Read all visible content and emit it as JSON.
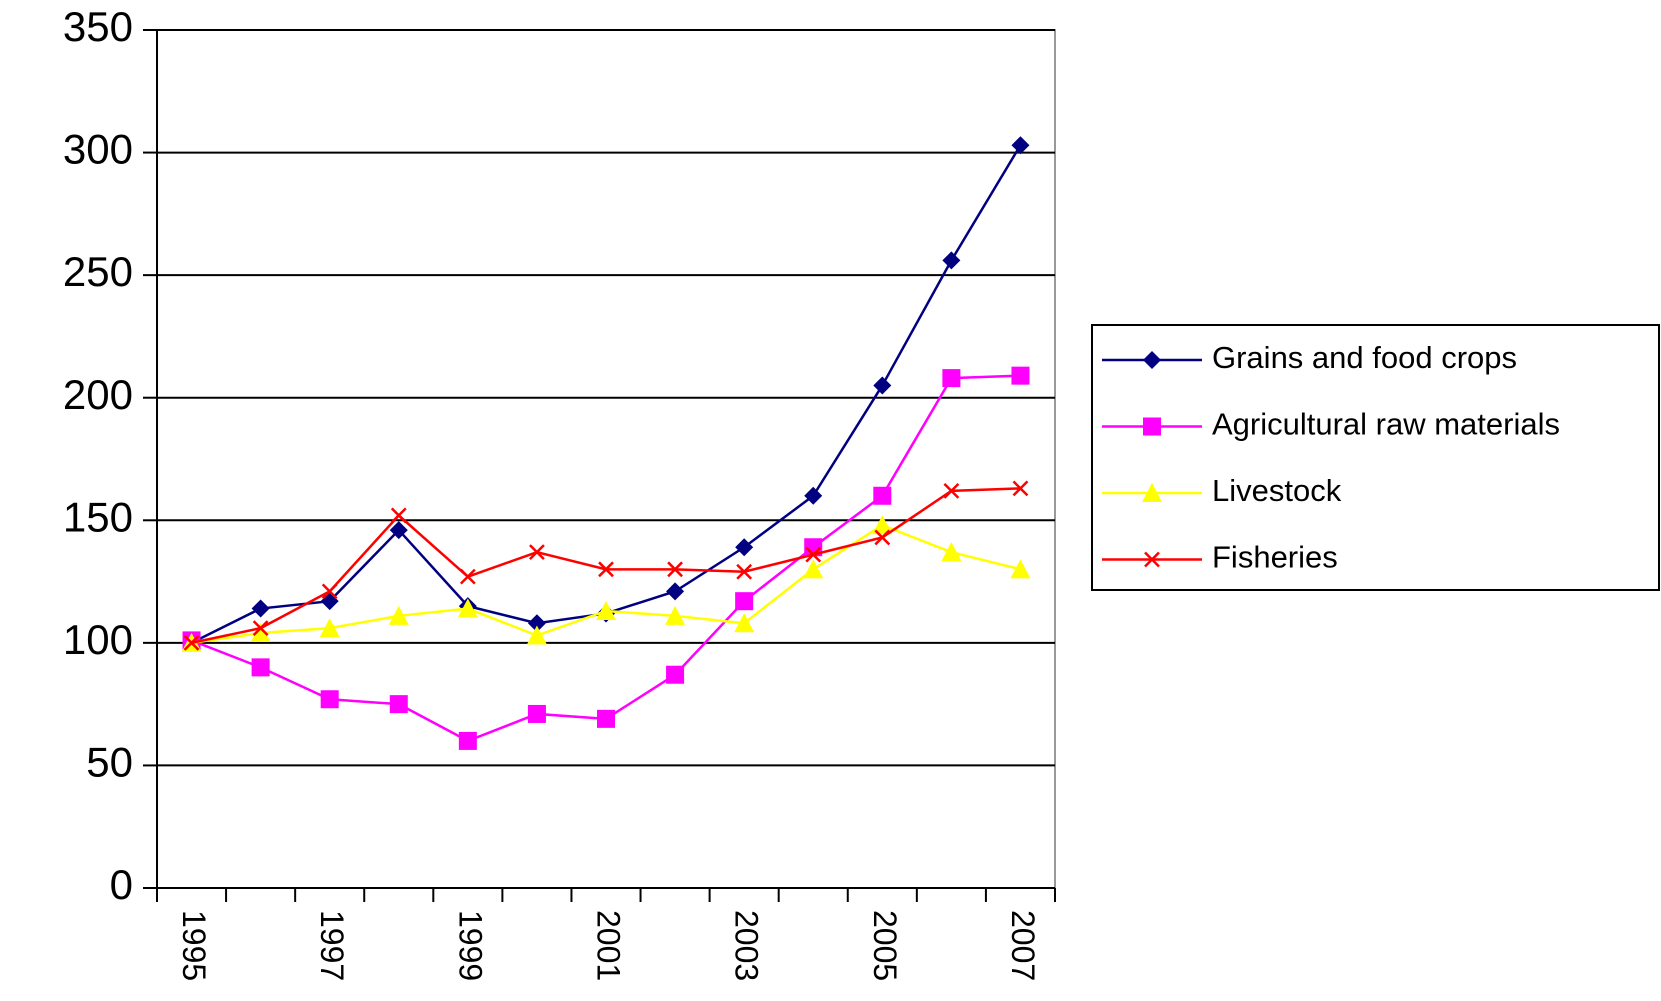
{
  "chart_data": {
    "type": "line",
    "categories": [
      "1995",
      null,
      "1997",
      null,
      "1999",
      null,
      "2001",
      null,
      "2003",
      null,
      "2005",
      null,
      "2007"
    ],
    "series": [
      {
        "name": "Grains and food crops",
        "color": "#000080",
        "marker": "diamond",
        "values": [
          100,
          114,
          117,
          146,
          115,
          108,
          112,
          121,
          139,
          160,
          205,
          256,
          303
        ]
      },
      {
        "name": "Agricultural raw materials",
        "color": "#ff00ff",
        "marker": "square",
        "values": [
          101,
          90,
          77,
          75,
          60,
          71,
          69,
          87,
          117,
          139,
          160,
          208,
          209
        ]
      },
      {
        "name": "Livestock",
        "color": "#ffff00",
        "marker": "triangle",
        "values": [
          100,
          104,
          106,
          111,
          114,
          103,
          113,
          111,
          108,
          130,
          148,
          137,
          130
        ]
      },
      {
        "name": "Fisheries",
        "color": "#ff0000",
        "marker": "x",
        "values": [
          100,
          106,
          121,
          152,
          127,
          137,
          130,
          130,
          129,
          136,
          143,
          162,
          163
        ]
      }
    ],
    "ylim": [
      0,
      350
    ],
    "yticks": [
      0,
      50,
      100,
      150,
      200,
      250,
      300,
      350
    ],
    "grid": true,
    "legend": "right"
  }
}
